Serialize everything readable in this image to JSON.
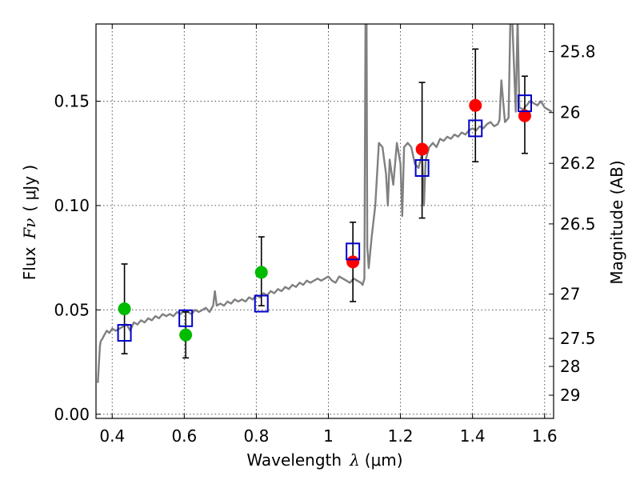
{
  "chart_data": {
    "type": "scatter",
    "xlabel": "Wavelength",
    "xlabel_symbol": "λ",
    "xlabel_unit": "(μm)",
    "ylabel": "Flux",
    "ylabel_symbol": "Fν",
    "ylabel_unit": "( μJy )",
    "ylabel_right": "Magnitude (AB)",
    "xlim": [
      0.355,
      1.625
    ],
    "ylim": [
      -0.002,
      0.187
    ],
    "x_ticks": [
      0.4,
      0.6,
      0.8,
      1.0,
      1.2,
      1.4,
      1.6
    ],
    "x_tick_labels": [
      "0.4",
      "0.6",
      "0.8",
      "1",
      "1.2",
      "1.4",
      "1.6"
    ],
    "y_ticks": [
      0.0,
      0.05,
      0.1,
      0.15
    ],
    "y_tick_labels": [
      "0.00",
      "0.05",
      "0.10",
      "0.15"
    ],
    "right_ticks": [
      {
        "mag": 25.8,
        "label": "25.8"
      },
      {
        "mag": 26.0,
        "label": "26"
      },
      {
        "mag": 26.2,
        "label": "26.2"
      },
      {
        "mag": 26.5,
        "label": "26.5"
      },
      {
        "mag": 27.0,
        "label": "27"
      },
      {
        "mag": 27.5,
        "label": "27.5"
      },
      {
        "mag": 28.0,
        "label": "28"
      },
      {
        "mag": 29.0,
        "label": "29"
      }
    ],
    "grid": true,
    "colors": {
      "model": "#808080",
      "green": "#00bb00",
      "red": "#ff0000",
      "box": "#0000cc",
      "errorbar": "#000000"
    },
    "series": [
      {
        "name": "model spectrum",
        "kind": "line",
        "x": [
          0.36,
          0.363,
          0.366,
          0.368,
          0.372,
          0.378,
          0.385,
          0.392,
          0.4,
          0.41,
          0.42,
          0.43,
          0.44,
          0.45,
          0.46,
          0.47,
          0.48,
          0.49,
          0.5,
          0.51,
          0.52,
          0.53,
          0.54,
          0.55,
          0.56,
          0.57,
          0.58,
          0.59,
          0.6,
          0.61,
          0.62,
          0.63,
          0.64,
          0.65,
          0.66,
          0.67,
          0.68,
          0.685,
          0.69,
          0.7,
          0.71,
          0.72,
          0.73,
          0.74,
          0.75,
          0.76,
          0.77,
          0.78,
          0.79,
          0.8,
          0.81,
          0.82,
          0.83,
          0.84,
          0.85,
          0.86,
          0.87,
          0.88,
          0.89,
          0.9,
          0.91,
          0.92,
          0.93,
          0.94,
          0.95,
          0.96,
          0.97,
          0.98,
          0.99,
          1.0,
          1.01,
          1.02,
          1.03,
          1.04,
          1.05,
          1.06,
          1.07,
          1.08,
          1.09,
          1.095,
          1.1,
          1.103,
          1.106,
          1.108,
          1.112,
          1.12,
          1.13,
          1.14,
          1.15,
          1.16,
          1.165,
          1.17,
          1.18,
          1.19,
          1.2,
          1.205,
          1.21,
          1.22,
          1.23,
          1.24,
          1.25,
          1.26,
          1.265,
          1.27,
          1.28,
          1.29,
          1.3,
          1.31,
          1.32,
          1.33,
          1.34,
          1.35,
          1.36,
          1.37,
          1.38,
          1.39,
          1.4,
          1.41,
          1.42,
          1.43,
          1.44,
          1.45,
          1.46,
          1.47,
          1.475,
          1.48,
          1.49,
          1.5,
          1.505,
          1.51,
          1.52,
          1.525,
          1.53,
          1.54,
          1.55,
          1.56,
          1.57,
          1.58,
          1.59,
          1.6,
          1.61,
          1.62
        ],
        "y": [
          0.015,
          0.024,
          0.033,
          0.035,
          0.036,
          0.038,
          0.04,
          0.039,
          0.041,
          0.04,
          0.041,
          0.042,
          0.043,
          0.04,
          0.044,
          0.043,
          0.045,
          0.044,
          0.046,
          0.045,
          0.047,
          0.046,
          0.048,
          0.047,
          0.048,
          0.047,
          0.049,
          0.048,
          0.05,
          0.049,
          0.048,
          0.05,
          0.049,
          0.05,
          0.051,
          0.049,
          0.052,
          0.059,
          0.052,
          0.053,
          0.052,
          0.054,
          0.053,
          0.055,
          0.054,
          0.055,
          0.054,
          0.056,
          0.055,
          0.057,
          0.056,
          0.058,
          0.057,
          0.059,
          0.058,
          0.06,
          0.059,
          0.061,
          0.06,
          0.062,
          0.061,
          0.063,
          0.062,
          0.064,
          0.063,
          0.064,
          0.065,
          0.064,
          0.065,
          0.066,
          0.064,
          0.063,
          0.066,
          0.065,
          0.064,
          0.063,
          0.065,
          0.064,
          0.063,
          0.062,
          0.065,
          0.19,
          0.19,
          0.08,
          0.07,
          0.085,
          0.1,
          0.13,
          0.128,
          0.115,
          0.1,
          0.122,
          0.11,
          0.13,
          0.12,
          0.095,
          0.128,
          0.13,
          0.128,
          0.12,
          0.118,
          0.125,
          0.1,
          0.122,
          0.128,
          0.13,
          0.128,
          0.132,
          0.131,
          0.133,
          0.132,
          0.134,
          0.133,
          0.135,
          0.134,
          0.136,
          0.137,
          0.136,
          0.138,
          0.137,
          0.139,
          0.14,
          0.138,
          0.139,
          0.141,
          0.16,
          0.14,
          0.142,
          0.19,
          0.19,
          0.145,
          0.19,
          0.147,
          0.146,
          0.148,
          0.15,
          0.149,
          0.148,
          0.15,
          0.147,
          0.146,
          0.145
        ]
      },
      {
        "name": "green points",
        "kind": "points",
        "x": [
          0.434,
          0.604,
          0.814
        ],
        "y": [
          0.0505,
          0.038,
          0.068
        ]
      },
      {
        "name": "red points",
        "kind": "points",
        "x": [
          1.068,
          1.26,
          1.408,
          1.545
        ],
        "y": [
          0.073,
          0.127,
          0.148,
          0.143
        ]
      },
      {
        "name": "model boxes",
        "kind": "squares",
        "x": [
          0.434,
          0.604,
          0.814,
          1.068,
          1.26,
          1.408,
          1.545
        ],
        "y": [
          0.039,
          0.046,
          0.053,
          0.078,
          0.118,
          0.137,
          0.149
        ]
      },
      {
        "name": "error bars",
        "kind": "errorbars",
        "x": [
          0.434,
          0.604,
          0.814,
          1.068,
          1.26,
          1.408,
          1.545
        ],
        "low": [
          0.029,
          0.027,
          0.052,
          0.054,
          0.094,
          0.121,
          0.125
        ],
        "high": [
          0.072,
          0.049,
          0.085,
          0.092,
          0.159,
          0.175,
          0.162
        ]
      }
    ]
  }
}
